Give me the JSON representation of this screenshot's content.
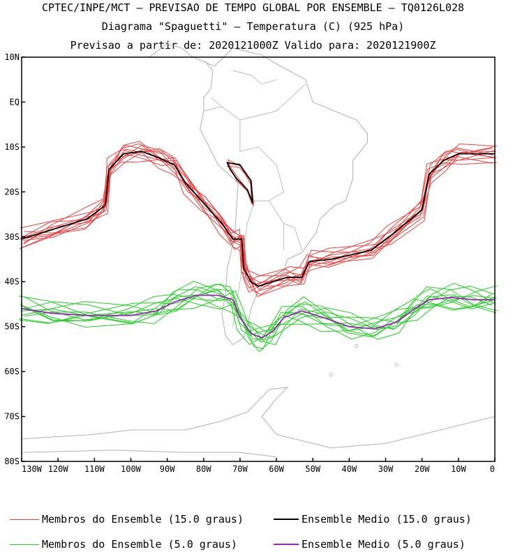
{
  "header": {
    "line1": "CPTEC/INPE/MCT – PREVISAO DE TEMPO GLOBAL POR ENSEMBLE – TQ0126L028",
    "line2": "Diagrama \"Spaguetti\" – Temperatura (C) (925 hPa)",
    "line3": "Previsao a partir de: 2020121000Z  Valido para: 2020121900Z"
  },
  "map": {
    "lon_range": [
      -130,
      0
    ],
    "lat_range": [
      -80,
      10
    ],
    "lat_ticks": [
      "10N",
      "EQ",
      "10S",
      "20S",
      "30S",
      "40S",
      "50S",
      "60S",
      "70S",
      "80S"
    ],
    "lon_ticks": [
      "130W",
      "120W",
      "110W",
      "100W",
      "90W",
      "80W",
      "70W",
      "60W",
      "50W",
      "40W",
      "30W",
      "20W",
      "10W",
      "0"
    ],
    "coast_color": "#b0b0b0"
  },
  "legend": {
    "items": [
      {
        "label": "Membros do Ensemble (15.0 graus)",
        "color": "#f04040"
      },
      {
        "label": "Ensemble Medio (15.0 graus)",
        "color": "#000000"
      },
      {
        "label": "Membros do Ensemble (5.0 graus)",
        "color": "#20d020"
      },
      {
        "label": "Ensemble Medio (5.0 graus)",
        "color": "#a020c0"
      }
    ]
  },
  "contours": {
    "mean15": [
      [
        -130,
        -30.5
      ],
      [
        -122,
        -28.5
      ],
      [
        -112,
        -26
      ],
      [
        -107,
        -23
      ],
      [
        -106,
        -15
      ],
      [
        -102,
        -11.5
      ],
      [
        -97,
        -11
      ],
      [
        -92,
        -12.5
      ],
      [
        -88,
        -14
      ],
      [
        -85,
        -18
      ],
      [
        -80,
        -22.5
      ],
      [
        -75,
        -27
      ],
      [
        -72,
        -30.5
      ],
      [
        -69.5,
        -30.5
      ],
      [
        -69,
        -37
      ],
      [
        -67,
        -40
      ],
      [
        -65,
        -41
      ],
      [
        -57,
        -39
      ],
      [
        -53,
        -39
      ],
      [
        -51,
        -35.5
      ],
      [
        -45,
        -35
      ],
      [
        -34,
        -33
      ],
      [
        -29,
        -30
      ],
      [
        -20,
        -24
      ],
      [
        -18,
        -16
      ],
      [
        -14,
        -13
      ],
      [
        -10,
        -11.5
      ],
      [
        0,
        -11.5
      ]
    ],
    "mean15_andes": [
      [
        -73.5,
        -13.5
      ],
      [
        -70,
        -14
      ],
      [
        -67,
        -17.5
      ],
      [
        -66.5,
        -22.5
      ],
      [
        -68,
        -19.5
      ],
      [
        -71,
        -17
      ],
      [
        -73,
        -14.5
      ]
    ],
    "mean5": [
      [
        -130,
        -46
      ],
      [
        -122,
        -47
      ],
      [
        -112,
        -47.5
      ],
      [
        -100,
        -47.5
      ],
      [
        -93,
        -46.5
      ],
      [
        -88,
        -44.5
      ],
      [
        -82,
        -43
      ],
      [
        -76,
        -43
      ],
      [
        -72,
        -44
      ],
      [
        -70,
        -48
      ],
      [
        -67,
        -51.5
      ],
      [
        -64,
        -52.5
      ],
      [
        -61,
        -51
      ],
      [
        -58,
        -48
      ],
      [
        -53,
        -46.5
      ],
      [
        -47,
        -48
      ],
      [
        -40,
        -50
      ],
      [
        -33,
        -50.5
      ],
      [
        -27,
        -49
      ],
      [
        -22,
        -46
      ],
      [
        -18,
        -44
      ],
      [
        -12,
        -43.5
      ],
      [
        -6,
        -44
      ],
      [
        0,
        -44
      ]
    ]
  }
}
